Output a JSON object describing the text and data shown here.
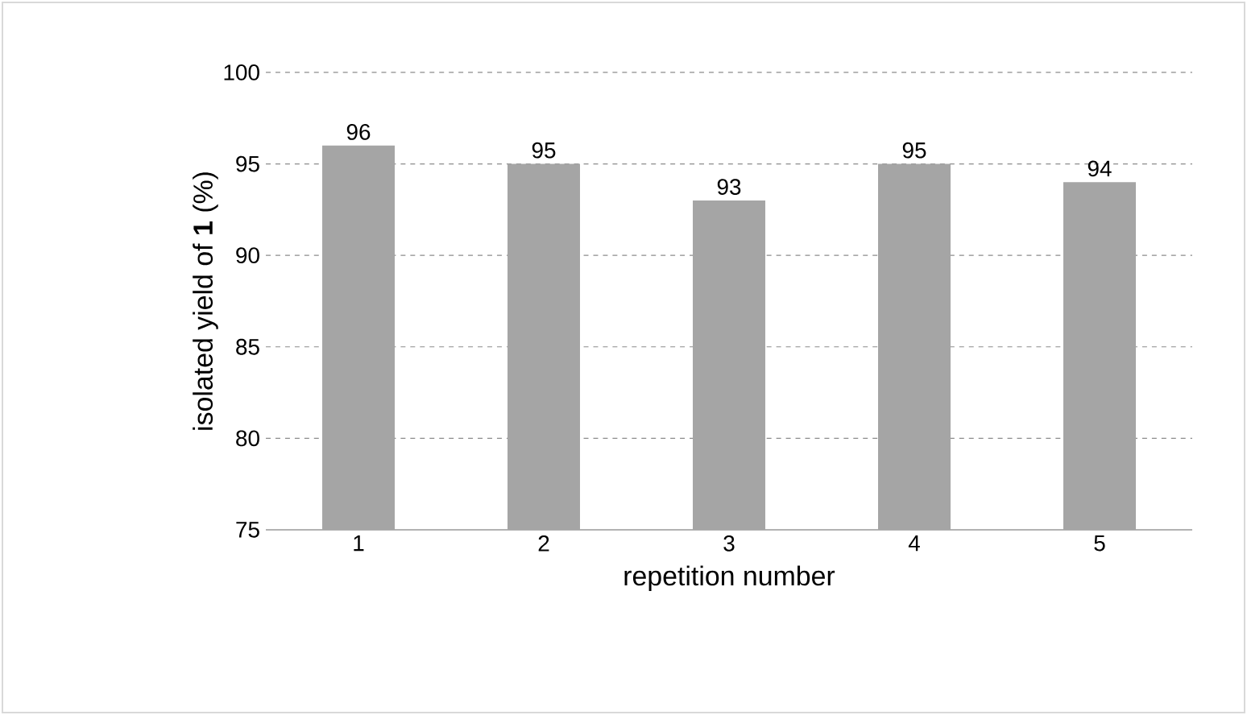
{
  "chart_data": {
    "type": "bar",
    "xlabel": "repetition number",
    "ylabel": "isolated yield of **1** (%)",
    "categories": [
      "1",
      "2",
      "3",
      "4",
      "5"
    ],
    "values": [
      96,
      95,
      93,
      95,
      94
    ],
    "color": "#a5a5a5",
    "ylim": [
      75,
      100
    ],
    "yticks": [
      75,
      80,
      85,
      90,
      95,
      100
    ],
    "grid": "y",
    "data_labels": true
  }
}
